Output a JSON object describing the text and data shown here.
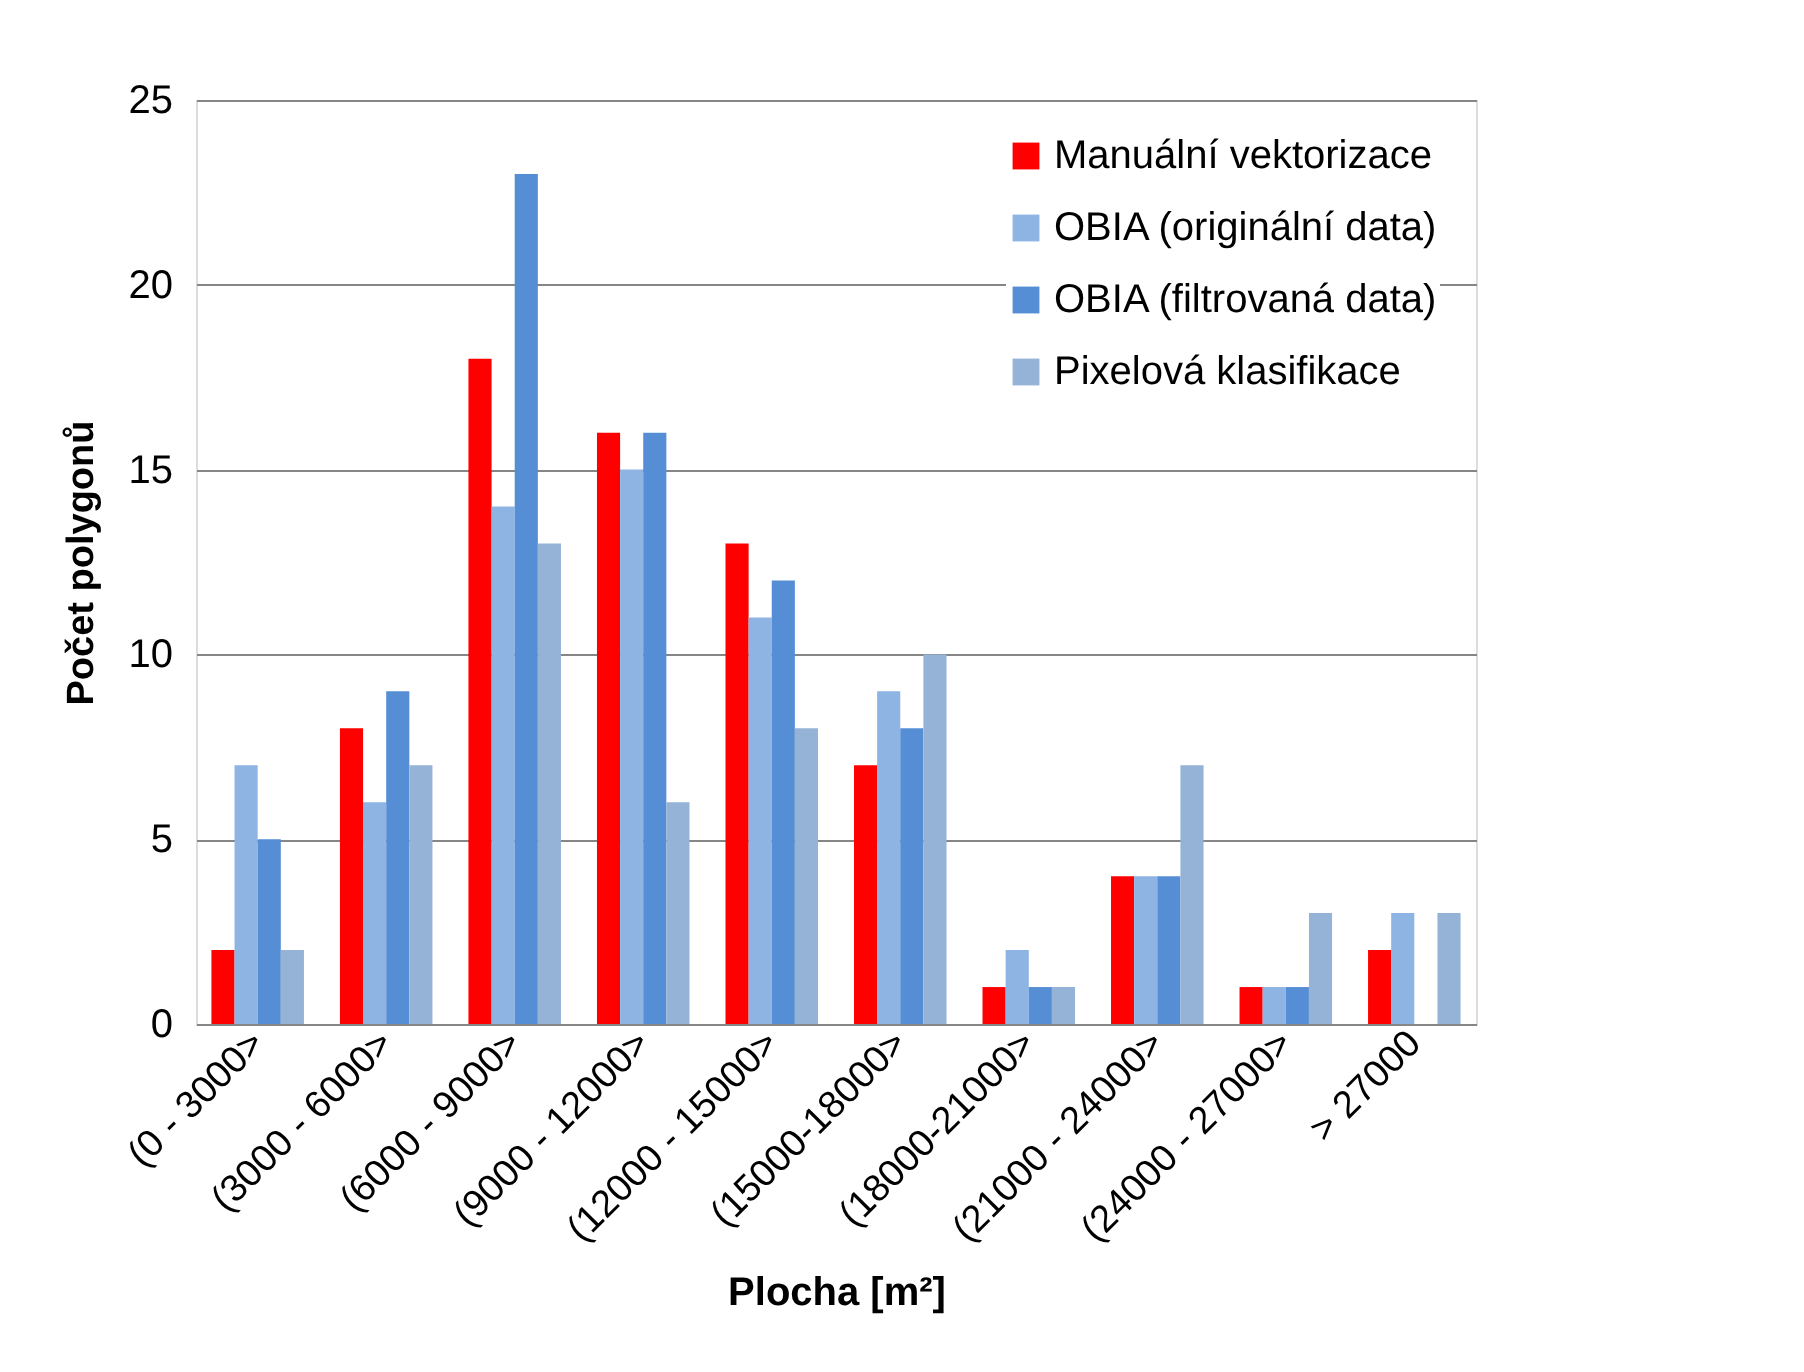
{
  "chart_data": {
    "type": "bar",
    "xlabel": "Plocha [m²]",
    "ylabel": "Počet polygonů",
    "categories": [
      "(0 - 3000>",
      "(3000 - 6000>",
      "(6000 - 9000>",
      "(9000 - 12000>",
      "(12000 - 15000>",
      "(15000-18000>",
      "(18000-21000>",
      "(21000 - 24000>",
      "(24000 - 27000>",
      "> 27000"
    ],
    "series": [
      {
        "name": "Manuální vektorizace",
        "color": "#ff0000",
        "values": [
          2,
          8,
          18,
          16,
          13,
          7,
          1,
          4,
          1,
          2
        ]
      },
      {
        "name": "OBIA (originální data)",
        "color": "#8eb4e3",
        "values": [
          7,
          6,
          14,
          15,
          11,
          9,
          2,
          4,
          1,
          3
        ]
      },
      {
        "name": "OBIA (filtrovaná data)",
        "color": "#558ed5",
        "values": [
          5,
          9,
          23,
          16,
          12,
          8,
          1,
          4,
          1,
          0
        ]
      },
      {
        "name": "Pixelová klasifikace",
        "color": "#95b3d7",
        "values": [
          2,
          7,
          13,
          6,
          8,
          10,
          1,
          7,
          3,
          3
        ]
      }
    ],
    "ylim": [
      0,
      25
    ],
    "yticks": [
      0,
      5,
      10,
      15,
      20,
      25
    ],
    "grid": "y",
    "legend": "top right"
  }
}
